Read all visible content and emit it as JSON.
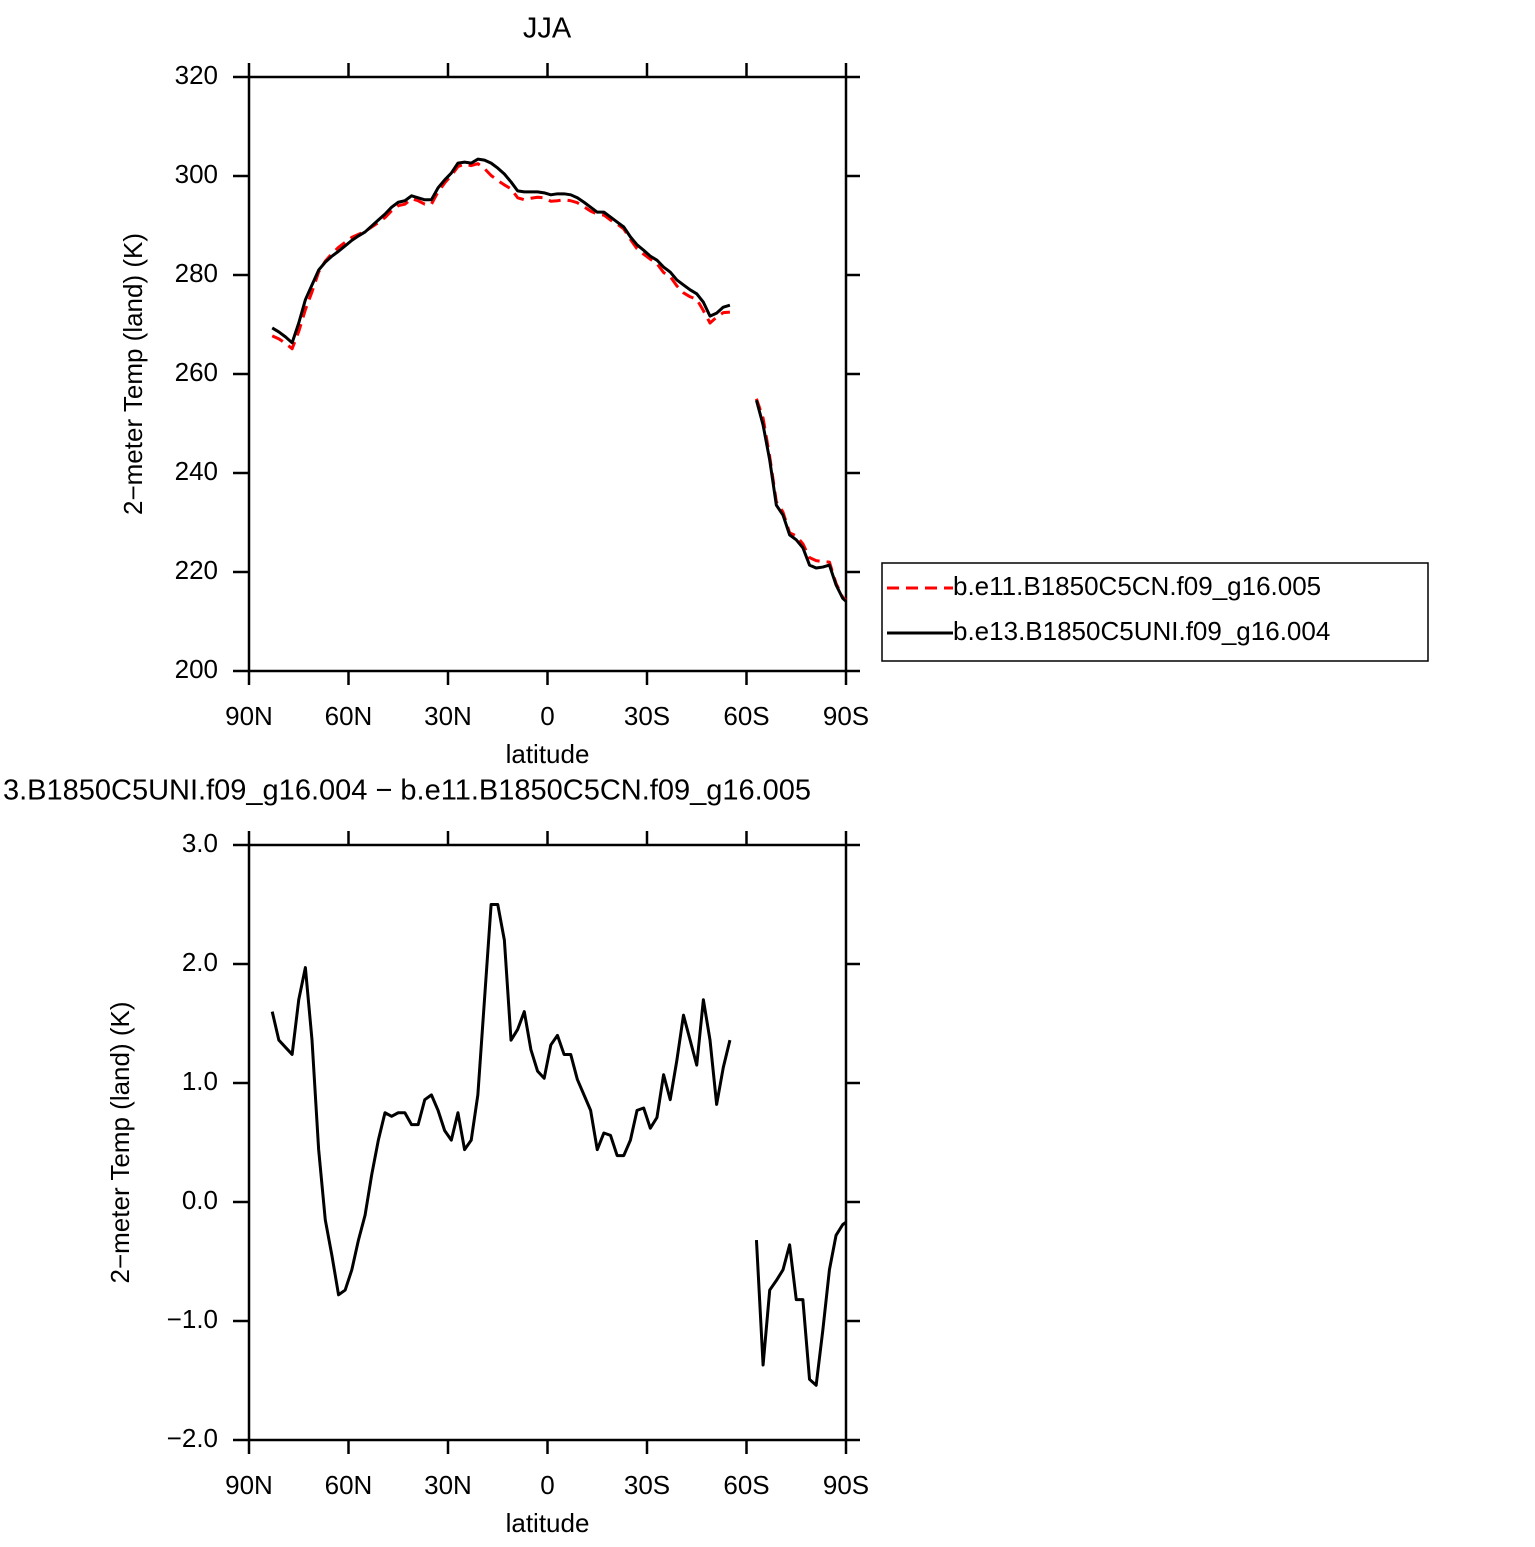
{
  "chart_data": [
    {
      "type": "line",
      "title": "JJA",
      "xlabel": "latitude",
      "ylabel": "2−meter Temp (land) (K)",
      "x": [
        83,
        81,
        79,
        77,
        75,
        73,
        71,
        69,
        67,
        65,
        63,
        61,
        59,
        57,
        55,
        53,
        51,
        49,
        47,
        45,
        43,
        41,
        39,
        37,
        35,
        33,
        31,
        29,
        27,
        25,
        23,
        21,
        19,
        17,
        15,
        13,
        11,
        9,
        7,
        5,
        3,
        1,
        -1,
        -3,
        -5,
        -7,
        -9,
        -11,
        -13,
        -15,
        -17,
        -19,
        -21,
        -23,
        -25,
        -27,
        -29,
        -31,
        -33,
        -35,
        -37,
        -39,
        -41,
        -43,
        -45,
        -47,
        -49,
        -51,
        -53,
        -55,
        -59,
        -63,
        -65,
        -67,
        -69,
        -71,
        -73,
        -75,
        -77,
        -79,
        -81,
        -83,
        -85,
        -87,
        -89,
        -90
      ],
      "xlim": [
        90,
        -90
      ],
      "xticks": [
        {
          "value": 90,
          "label": "90N"
        },
        {
          "value": 60,
          "label": "60N"
        },
        {
          "value": 30,
          "label": "30N"
        },
        0,
        {
          "value": -30,
          "label": "30S"
        },
        {
          "value": -60,
          "label": "60S"
        },
        {
          "value": -90,
          "label": "90S"
        }
      ],
      "ylim": [
        200,
        320
      ],
      "yticks": [
        200,
        220,
        240,
        260,
        280,
        300,
        320
      ],
      "legend_position": "right",
      "series": [
        {
          "name": "b.e11.B1850C5CN.f09_g16.005",
          "color": "#ff0000",
          "linestyle": "dashed",
          "values": [
            267.7,
            267.1,
            266.2,
            265.1,
            268.6,
            273.0,
            276.6,
            280.6,
            282.8,
            284.3,
            285.6,
            286.6,
            287.6,
            288.2,
            288.8,
            289.7,
            290.6,
            291.6,
            293.0,
            294.0,
            294.3,
            295.4,
            295.0,
            294.3,
            294.3,
            296.8,
            298.6,
            300.1,
            301.9,
            302.4,
            302.1,
            302.5,
            301.5,
            300.1,
            299.1,
            298.2,
            297.4,
            295.6,
            295.2,
            295.5,
            295.7,
            295.6,
            294.9,
            295.0,
            295.2,
            295.0,
            294.6,
            293.8,
            292.9,
            292.3,
            292.1,
            291.1,
            290.3,
            289.3,
            287.2,
            285.3,
            284.2,
            283.2,
            282.3,
            280.5,
            279.7,
            277.8,
            276.4,
            275.6,
            275.1,
            272.8,
            270.3,
            271.5,
            272.4,
            272.5,
            null,
            255.0,
            251.1,
            243.3,
            234.2,
            232.1,
            227.9,
            227.3,
            225.7,
            222.9,
            222.3,
            222.1,
            222.0,
            217.7,
            214.9,
            214.3
          ]
        },
        {
          "name": "b.e13.B1850C5UNI.f09_g16.004",
          "color": "#000000",
          "linestyle": "solid",
          "values": [
            269.3,
            268.5,
            267.5,
            266.3,
            270.3,
            275.0,
            278.0,
            281.0,
            282.6,
            283.8,
            284.8,
            285.9,
            287.0,
            287.9,
            288.7,
            289.9,
            291.1,
            292.3,
            293.7,
            294.7,
            295.0,
            296.0,
            295.6,
            295.2,
            295.2,
            297.6,
            299.2,
            300.6,
            302.6,
            302.8,
            302.6,
            303.4,
            303.2,
            302.6,
            301.6,
            300.4,
            298.8,
            297.0,
            296.8,
            296.8,
            296.8,
            296.6,
            296.2,
            296.4,
            296.4,
            296.2,
            295.6,
            294.7,
            293.7,
            292.7,
            292.7,
            291.7,
            290.7,
            289.7,
            287.7,
            286.1,
            285.0,
            283.8,
            283.0,
            281.6,
            280.6,
            279.0,
            278.0,
            277.0,
            276.2,
            274.5,
            271.7,
            272.3,
            273.5,
            273.9,
            null,
            254.7,
            249.7,
            242.6,
            233.5,
            231.5,
            227.5,
            226.5,
            224.9,
            221.4,
            220.8,
            221.0,
            221.4,
            217.4,
            214.7,
            214.1
          ]
        }
      ]
    },
    {
      "type": "line",
      "title": "3.B1850C5UNI.f09_g16.004 − b.e11.B1850C5CN.f09_g16.005",
      "xlabel": "latitude",
      "ylabel": "2−meter Temp (land) (K)",
      "x": [
        83,
        81,
        79,
        77,
        75,
        73,
        71,
        69,
        67,
        65,
        63,
        61,
        59,
        57,
        55,
        53,
        51,
        49,
        47,
        45,
        43,
        41,
        39,
        37,
        35,
        33,
        31,
        29,
        27,
        25,
        23,
        21,
        19,
        17,
        15,
        13,
        11,
        9,
        7,
        5,
        3,
        1,
        -1,
        -3,
        -5,
        -7,
        -9,
        -11,
        -13,
        -15,
        -17,
        -19,
        -21,
        -23,
        -25,
        -27,
        -29,
        -31,
        -33,
        -35,
        -37,
        -39,
        -41,
        -43,
        -45,
        -47,
        -49,
        -51,
        -53,
        -55,
        -59,
        -63,
        -65,
        -67,
        -69,
        -71,
        -73,
        -75,
        -77,
        -79,
        -81,
        -83,
        -85,
        -87,
        -89,
        -90
      ],
      "xlim": [
        90,
        -90
      ],
      "xticks": [
        {
          "value": 90,
          "label": "90N"
        },
        {
          "value": 60,
          "label": "60N"
        },
        {
          "value": 30,
          "label": "30N"
        },
        0,
        {
          "value": -30,
          "label": "30S"
        },
        {
          "value": -60,
          "label": "60S"
        },
        {
          "value": -90,
          "label": "90S"
        }
      ],
      "ylim": [
        -2,
        3
      ],
      "yticks": [
        {
          "value": -2,
          "label": "−2.0"
        },
        {
          "value": -1,
          "label": "−1.0"
        },
        {
          "value": 0,
          "label": "0.0"
        },
        {
          "value": 1,
          "label": "1.0"
        },
        {
          "value": 2,
          "label": "2.0"
        },
        {
          "value": 3,
          "label": "3.0"
        }
      ],
      "series": [
        {
          "color": "#000000",
          "linestyle": "solid",
          "values": [
            1.6,
            1.36,
            1.3,
            1.24,
            1.7,
            1.97,
            1.36,
            0.44,
            -0.15,
            -0.45,
            -0.78,
            -0.74,
            -0.57,
            -0.32,
            -0.11,
            0.23,
            0.52,
            0.75,
            0.72,
            0.75,
            0.75,
            0.65,
            0.65,
            0.86,
            0.9,
            0.77,
            0.6,
            0.52,
            0.75,
            0.44,
            0.52,
            0.9,
            1.7,
            2.5,
            2.5,
            2.2,
            1.36,
            1.45,
            1.6,
            1.28,
            1.1,
            1.04,
            1.32,
            1.4,
            1.24,
            1.24,
            1.03,
            0.9,
            0.77,
            0.44,
            0.58,
            0.56,
            0.39,
            0.39,
            0.52,
            0.77,
            0.79,
            0.62,
            0.71,
            1.07,
            0.86,
            1.19,
            1.57,
            1.36,
            1.15,
            1.7,
            1.36,
            0.82,
            1.13,
            1.36,
            null,
            -0.32,
            -1.37,
            -0.74,
            -0.66,
            -0.57,
            -0.36,
            -0.82,
            -0.82,
            -1.49,
            -1.54,
            -1.08,
            -0.57,
            -0.28,
            -0.19,
            -0.17
          ]
        }
      ]
    }
  ]
}
